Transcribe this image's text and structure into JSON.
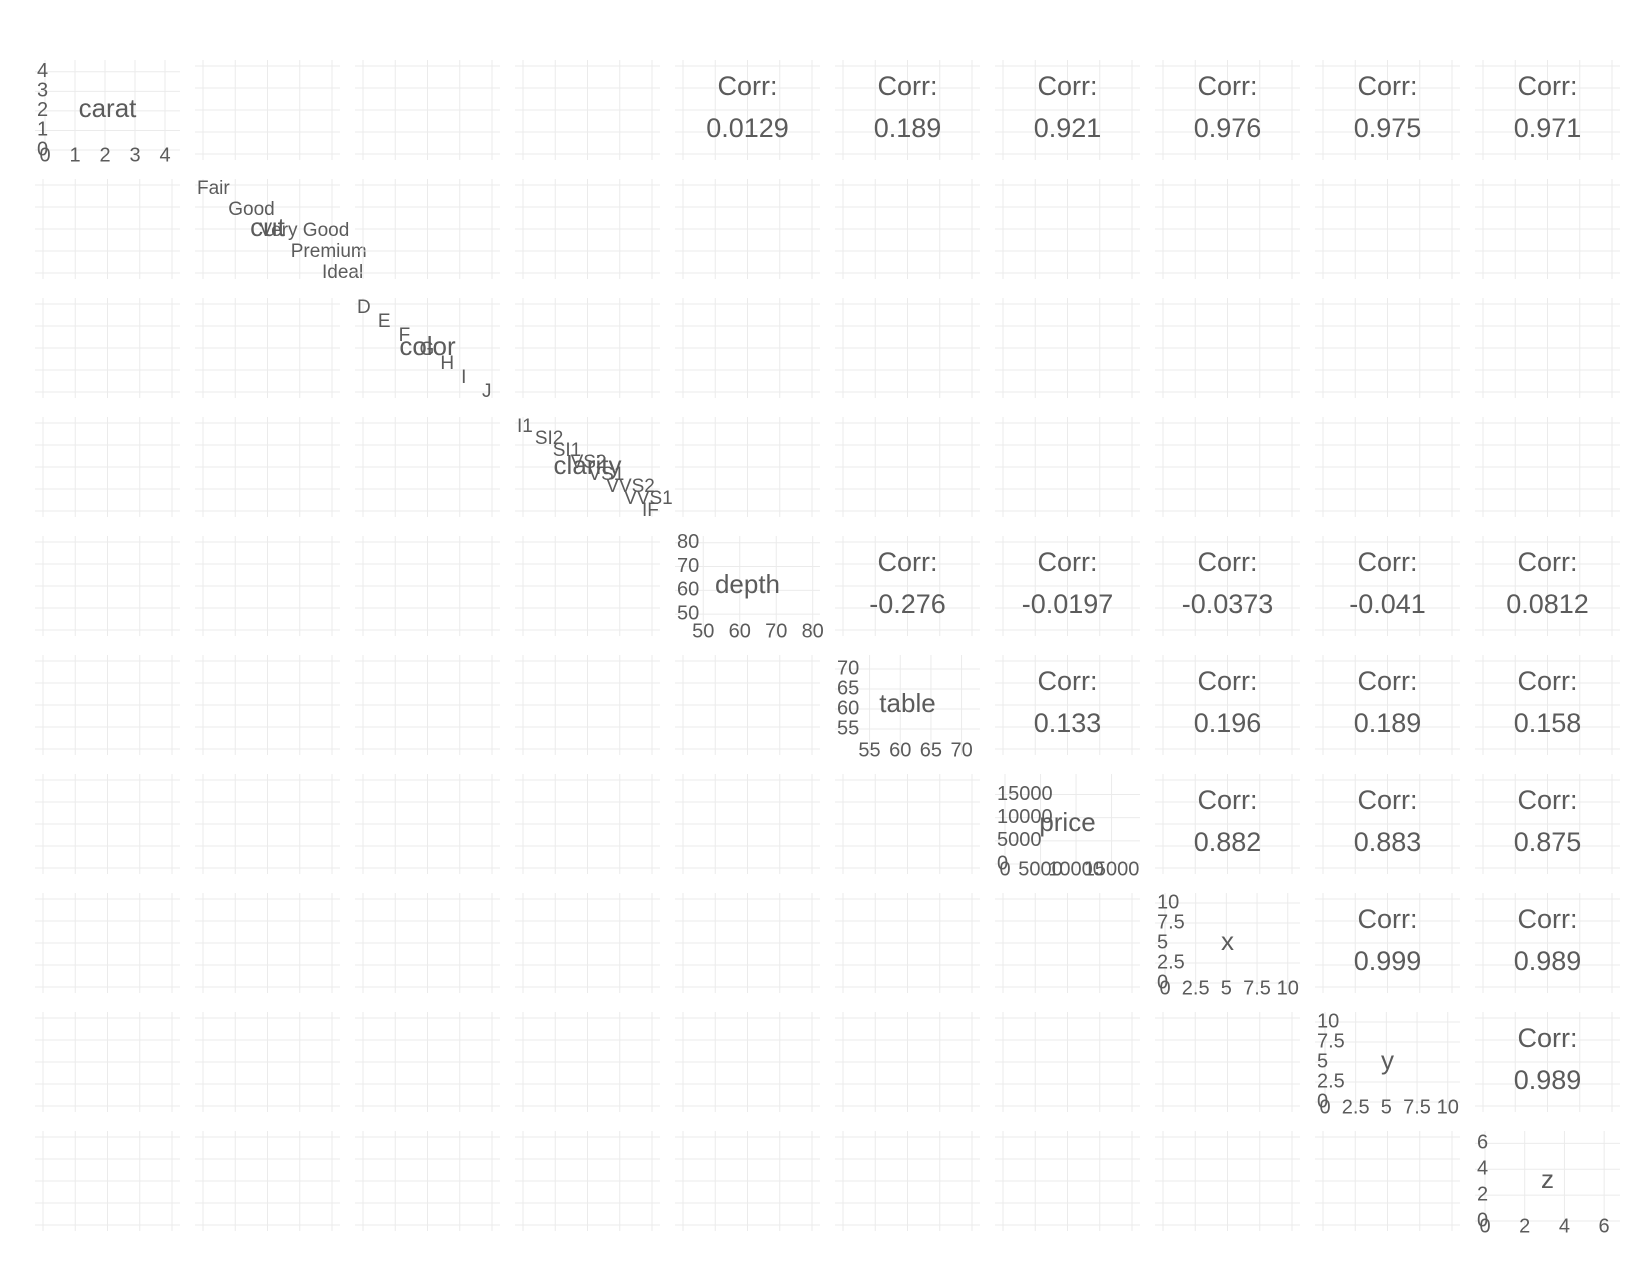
{
  "chart_data": {
    "type": "pairs",
    "corr_label": "Corr:",
    "variables": [
      {
        "name": "carat",
        "lim": [
          0,
          4.5
        ],
        "ticks": [
          0,
          1,
          2,
          3,
          4
        ]
      },
      {
        "name": "cut",
        "levels": [
          "Fair",
          "Good",
          "Very Good",
          "Premium",
          "Ideal"
        ]
      },
      {
        "name": "color",
        "levels": [
          "D",
          "E",
          "F",
          "G",
          "H",
          "I",
          "J"
        ]
      },
      {
        "name": "clarity",
        "levels": [
          "I1",
          "SI2",
          "SI1",
          "VS2",
          "VS1",
          "VVS2",
          "VVS1",
          "IF"
        ]
      },
      {
        "name": "depth",
        "lim": [
          45,
          82
        ],
        "ticks": [
          50,
          60,
          70,
          80
        ]
      },
      {
        "name": "table",
        "lim": [
          51,
          73
        ],
        "ticks": [
          55,
          60,
          65,
          70
        ]
      },
      {
        "name": "price",
        "lim": [
          0,
          19000
        ],
        "ticks": [
          0,
          5000,
          10000,
          15000
        ]
      },
      {
        "name": "x",
        "lim": [
          0,
          11
        ],
        "ticks": [
          0,
          2.5,
          5,
          7.5,
          10
        ]
      },
      {
        "name": "y",
        "lim": [
          0,
          11
        ],
        "ticks": [
          0,
          2.5,
          5,
          7.5,
          10
        ]
      },
      {
        "name": "z",
        "lim": [
          0,
          6.8
        ],
        "ticks": [
          0,
          2,
          4,
          6
        ]
      }
    ],
    "correlations": {
      "carat": {
        "depth": 0.0129,
        "table": 0.189,
        "price": 0.921,
        "x": 0.976,
        "y": 0.975,
        "z": 0.971
      },
      "depth": {
        "table": -0.276,
        "price": -0.0197,
        "x": -0.0373,
        "y": -0.041,
        "z": 0.0812
      },
      "table": {
        "price": 0.133,
        "x": 0.196,
        "y": 0.189,
        "z": 0.158
      },
      "price": {
        "x": 0.882,
        "y": 0.883,
        "z": 0.875
      },
      "x": {
        "y": 0.999,
        "z": 0.989
      },
      "y": {
        "z": 0.989
      }
    }
  }
}
